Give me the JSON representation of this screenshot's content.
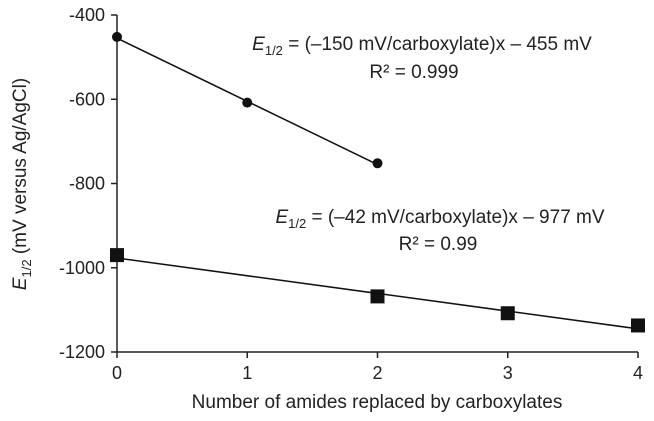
{
  "chart_data": {
    "type": "scatter",
    "xlabel": "Number of amides replaced by carboxylates",
    "ylabel": {
      "symbol": "E",
      "subscript": "1/2",
      "rest": " (mV versus Ag/AgCl)"
    },
    "xlim": [
      0,
      4
    ],
    "ylim": [
      -1200,
      -400
    ],
    "x_ticks": [
      "0",
      "1",
      "2",
      "3",
      "4"
    ],
    "y_ticks": [
      "-400",
      "-600",
      "-800",
      "-1000",
      "-1200"
    ],
    "series": [
      {
        "marker": "circle",
        "x": [
          0,
          1,
          2
        ],
        "y": [
          -452,
          -608,
          -752
        ],
        "fit": {
          "slope": -150,
          "intercept": -455,
          "x_range": [
            0,
            2
          ]
        }
      },
      {
        "marker": "square",
        "x": [
          0,
          2,
          3,
          4
        ],
        "y": [
          -970,
          -1068,
          -1108,
          -1137
        ],
        "fit": {
          "slope": -42,
          "intercept": -977,
          "x_range": [
            0,
            4
          ]
        }
      }
    ],
    "annotations": [
      {
        "symbol": "E",
        "subscript": "1/2",
        "equation": " = (–150 mV/carboxylate)x – 455 mV",
        "r2": "R² = 0.999"
      },
      {
        "symbol": "E",
        "subscript": "1/2",
        "equation": " = (–42 mV/carboxylate)x – 977 mV",
        "r2": "R² = 0.99"
      }
    ]
  }
}
